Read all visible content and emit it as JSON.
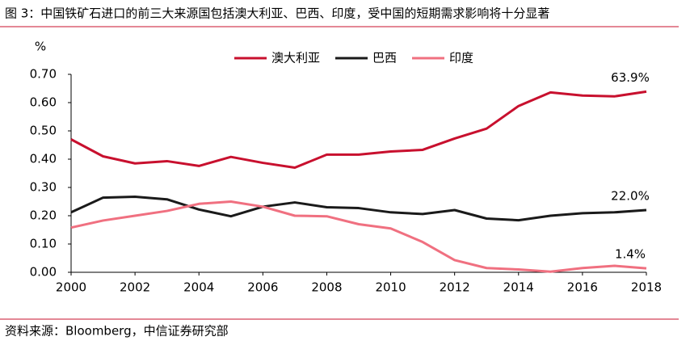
{
  "chart_data": {
    "type": "line",
    "title": "图 3：中国铁矿石进口的前三大来源国包括澳大利亚、巴西、印度，受中国的短期需求影响将十分显著",
    "source": "资料来源：Bloomberg，中信证券研究部",
    "y_label": "%",
    "x": [
      2000,
      2001,
      2002,
      2003,
      2004,
      2005,
      2006,
      2007,
      2008,
      2009,
      2010,
      2011,
      2012,
      2013,
      2014,
      2015,
      2016,
      2017,
      2018
    ],
    "xlim": [
      2000,
      2018
    ],
    "xticks": [
      2000,
      2002,
      2004,
      2006,
      2008,
      2010,
      2012,
      2014,
      2016,
      2018
    ],
    "ylim": [
      0,
      0.7
    ],
    "yticks": [
      {
        "value": 0,
        "label": "0.00"
      },
      {
        "value": 0.1,
        "label": "0.10"
      },
      {
        "value": 0.2,
        "label": "0.20"
      },
      {
        "value": 0.3,
        "label": "0.30"
      },
      {
        "value": 0.4,
        "label": "0.40"
      },
      {
        "value": 0.5,
        "label": "0.50"
      },
      {
        "value": 0.6,
        "label": "0.60"
      },
      {
        "value": 0.7,
        "label": "0.70"
      }
    ],
    "grid": false,
    "legend": "top",
    "series": [
      {
        "name": "澳大利亚",
        "color": "#c8102e",
        "values": [
          0.47,
          0.41,
          0.385,
          0.393,
          0.376,
          0.408,
          0.387,
          0.37,
          0.416,
          0.416,
          0.427,
          0.433,
          0.473,
          0.508,
          0.588,
          0.636,
          0.625,
          0.622,
          0.639
        ],
        "value_labels": [
          null,
          null,
          null,
          null,
          null,
          null,
          null,
          null,
          null,
          null,
          null,
          null,
          null,
          null,
          null,
          null,
          null,
          null,
          "63.9%"
        ]
      },
      {
        "name": "巴西",
        "color": "#1a1a1a",
        "values": [
          0.212,
          0.264,
          0.267,
          0.258,
          0.222,
          0.198,
          0.232,
          0.247,
          0.23,
          0.227,
          0.212,
          0.206,
          0.22,
          0.19,
          0.184,
          0.2,
          0.209,
          0.212,
          0.22
        ],
        "value_labels": [
          null,
          null,
          null,
          null,
          null,
          null,
          null,
          null,
          null,
          null,
          null,
          null,
          null,
          null,
          null,
          null,
          null,
          null,
          "22.0%"
        ]
      },
      {
        "name": "印度",
        "color": "#f07080",
        "values": [
          0.158,
          0.183,
          0.2,
          0.217,
          0.242,
          0.25,
          0.232,
          0.2,
          0.198,
          0.17,
          0.155,
          0.107,
          0.043,
          0.015,
          0.01,
          0.002,
          0.015,
          0.023,
          0.014
        ],
        "value_labels": [
          null,
          null,
          null,
          null,
          null,
          null,
          null,
          null,
          null,
          null,
          null,
          null,
          null,
          null,
          null,
          null,
          null,
          null,
          "1.4%"
        ]
      }
    ]
  }
}
